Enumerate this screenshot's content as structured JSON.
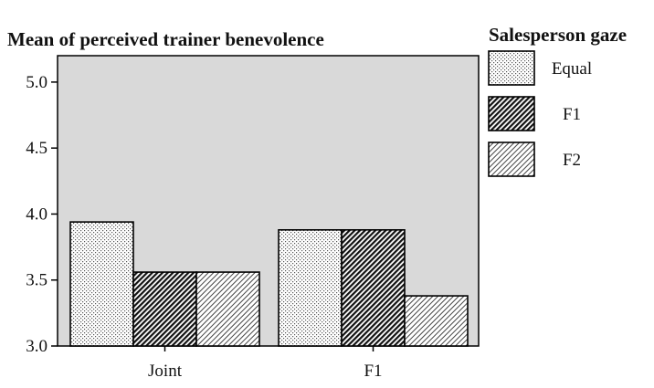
{
  "chart_data": {
    "type": "bar",
    "title": "Mean of perceived trainer benevolence",
    "xlabel": "",
    "ylabel": "",
    "categories": [
      "Joint",
      "F1"
    ],
    "series": [
      {
        "name": "Equal",
        "values": [
          3.94,
          3.88
        ],
        "pattern": "dots"
      },
      {
        "name": "F1",
        "values": [
          3.56,
          3.88
        ],
        "pattern": "dense-diagonal"
      },
      {
        "name": "F2",
        "values": [
          3.56,
          3.38
        ],
        "pattern": "light-diagonal"
      }
    ],
    "ylim": [
      3.0,
      5.2
    ],
    "yticks": [
      "3.0",
      "3.5",
      "4.0",
      "4.5",
      "5.0"
    ],
    "ytick_values": [
      3.0,
      3.5,
      4.0,
      4.5,
      5.0
    ],
    "legend_title": "Salesperson gaze",
    "legend_position": "right",
    "plot_background": "#d9d9d9",
    "bar_outline": "#000000",
    "grid": false
  }
}
